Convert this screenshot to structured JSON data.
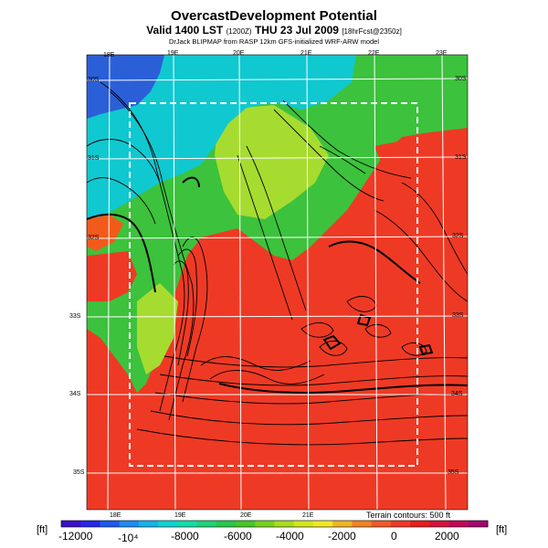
{
  "header": {
    "title": "OvercastDevelopment Potential",
    "subtitle_main": "Valid 1400 LST",
    "subtitle_code": "(1200Z)",
    "subtitle_date": "THU 23 Jul 2009",
    "subtitle_fcst": "[18hrFcst@2350z]",
    "source_line": "DrJack BLIPMAP from RASP 12km GFS-initialized WRF-ARW model"
  },
  "map": {
    "top_lon_ticks": [
      "18E",
      "19E",
      "20E",
      "21E",
      "22E",
      "23E"
    ],
    "bottom_lon_ticks": [
      "18E",
      "19E",
      "20E",
      "21E"
    ],
    "left_lat_ticks": [
      "30S",
      "31S",
      "32S",
      "33S",
      "34S",
      "35S"
    ],
    "right_lat_ticks": [
      "30S",
      "31S",
      "32S",
      "33S",
      "34S",
      "35S"
    ],
    "terrain_note": "Terrain contours: 500 ft",
    "colors": {
      "blue": "#2a5fd8",
      "cyan": "#10c8d0",
      "green": "#3cc23c",
      "yellow_green": "#a6dc30",
      "red": "#ee3a25",
      "orange_red": "#f25a1c"
    }
  },
  "colorbar": {
    "unit_left": "[ft]",
    "unit_right": "[ft]",
    "labels": [
      "-12000",
      "-10⁴",
      "-8000",
      "-6000",
      "-4000",
      "-2000",
      "0",
      "2000"
    ],
    "colors": [
      "#3a10c8",
      "#2828e6",
      "#1e5aee",
      "#1e8cf0",
      "#14b4e6",
      "#10d2d2",
      "#12dcaa",
      "#1ed27a",
      "#28c84a",
      "#46c828",
      "#78d21e",
      "#aadc1e",
      "#d2e61e",
      "#f0e628",
      "#f0b428",
      "#f08228",
      "#f05a28",
      "#ee3a25",
      "#e61e1e",
      "#d2143c",
      "#c00a5a",
      "#a00a6e"
    ]
  }
}
